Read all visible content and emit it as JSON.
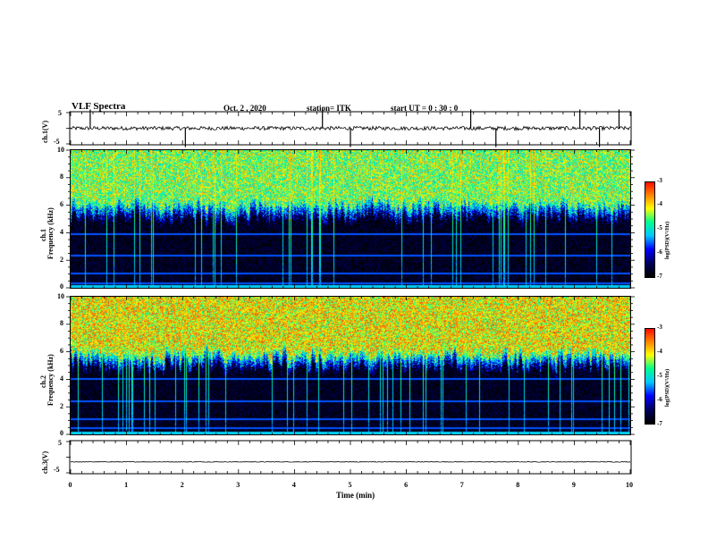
{
  "header": {
    "title": "VLF  Spectra",
    "date": "Oct. 2  , 2020",
    "station": "station= ITK",
    "start": "start  UT =   0 : 30 : 0"
  },
  "axes": {
    "ch1_voltage_label": "ch.1(V)",
    "ch1_spec_label": "ch.1\nFrequency (kHz)",
    "ch2_spec_label": "ch.2\nFrequency (kHz)",
    "ch3_voltage_label": "ch.3(V)",
    "xlabel": "Time  (min)",
    "colorbar_label": "log(PSD)(V²/Hz)"
  },
  "chart_data": [
    {
      "type": "line",
      "name": "ch.1 waveform",
      "ylabel": "ch.1(V)",
      "ylim": [
        -5,
        5
      ],
      "yticks": [
        "5",
        "-5"
      ],
      "xlim": [
        0,
        10
      ],
      "baseline": 0,
      "noise_amplitude": 0.6,
      "spikes_minutes": [
        0.35,
        2.05,
        4.5,
        5.0,
        7.15,
        7.6,
        9.1,
        9.45,
        9.8
      ]
    },
    {
      "type": "heatmap",
      "name": "ch.1 spectrogram",
      "ylabel": "Frequency (kHz)",
      "ylim": [
        0,
        10
      ],
      "yticks": [
        "0",
        "2",
        "4",
        "6",
        "8",
        "10"
      ],
      "xlim": [
        0,
        10
      ],
      "colorbar": {
        "range": [
          -7,
          -3
        ],
        "ticks": [
          "-3",
          "-4",
          "-5",
          "-6",
          "-7"
        ]
      },
      "lower_band_edge_khz": 4.8,
      "horizontal_lines_khz": [
        0.3,
        1.0,
        2.3,
        3.9
      ],
      "high_band_log_psd": -4.4,
      "low_band_log_psd": -7.0
    },
    {
      "type": "heatmap",
      "name": "ch.2 spectrogram",
      "ylabel": "Frequency (kHz)",
      "ylim": [
        0,
        10
      ],
      "yticks": [
        "0",
        "2",
        "4",
        "6",
        "8",
        "10"
      ],
      "xlim": [
        0,
        10
      ],
      "colorbar": {
        "range": [
          -7,
          -3
        ],
        "ticks": [
          "-3",
          "-4",
          "-5",
          "-6",
          "-7"
        ]
      },
      "lower_band_edge_khz": 4.6,
      "horizontal_lines_khz": [
        0.4,
        1.1,
        2.4,
        4.0
      ],
      "high_band_log_psd": -4.0,
      "low_band_log_psd": -7.0
    },
    {
      "type": "line",
      "name": "ch.3 waveform",
      "ylabel": "ch.3(V)",
      "ylim": [
        -5,
        5
      ],
      "yticks": [
        "5",
        "-5"
      ],
      "xlim": [
        0,
        10
      ],
      "baseline": -1.5,
      "noise_amplitude": 0.1,
      "spikes_minutes": []
    }
  ],
  "x_axis": {
    "xlim": [
      0,
      10
    ],
    "ticks": [
      "0",
      "1",
      "2",
      "3",
      "4",
      "5",
      "6",
      "7",
      "8",
      "9",
      "10"
    ]
  },
  "colors": {
    "frame": "#000000",
    "background": "#ffffff",
    "colormap": [
      "#000000",
      "#000060",
      "#0000ff",
      "#00c8ff",
      "#00ff90",
      "#ffff00",
      "#ff8000",
      "#ff0000",
      "#ffffff"
    ]
  }
}
